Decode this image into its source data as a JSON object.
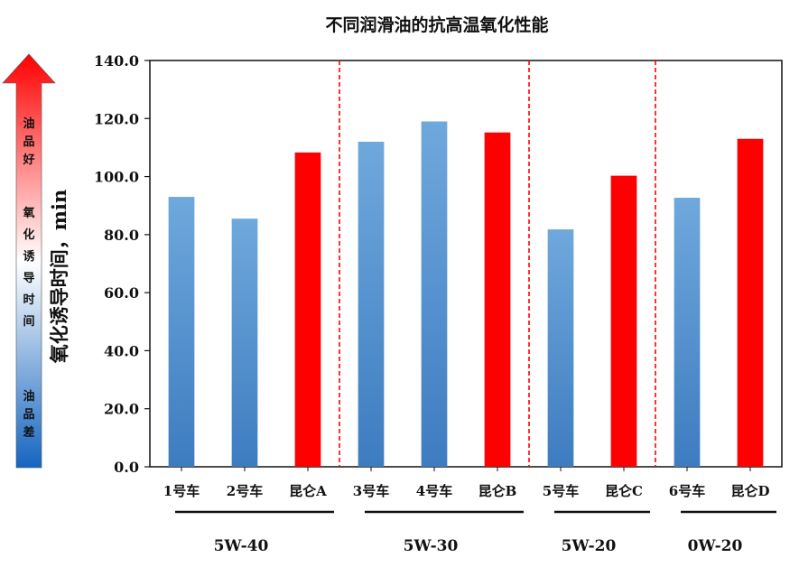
{
  "chart_data": {
    "type": "bar",
    "title": "不同润滑油的抗高温氧化性能",
    "ylabel": "氧化诱导时间，min",
    "ylim": [
      0,
      140
    ],
    "yticks": [
      "0.0",
      "20.0",
      "40.0",
      "60.0",
      "80.0",
      "100.0",
      "120.0",
      "140.0"
    ],
    "grid": false,
    "categories": [
      "1号车",
      "2号车",
      "昆仑A",
      "3号车",
      "4号车",
      "昆仑B",
      "5号车",
      "昆仑C",
      "6号车",
      "昆仑D"
    ],
    "values": [
      93,
      85.5,
      108.3,
      112,
      119,
      115.2,
      81.8,
      100.3,
      92.7,
      113
    ],
    "bar_colors": [
      "#5b9bd5",
      "#5b9bd5",
      "#ff0000",
      "#5b9bd5",
      "#5b9bd5",
      "#ff0000",
      "#5b9bd5",
      "#ff0000",
      "#5b9bd5",
      "#ff0000"
    ],
    "groups": [
      {
        "label": "5W-40",
        "categories": [
          "1号车",
          "2号车",
          "昆仑A"
        ]
      },
      {
        "label": "5W-30",
        "categories": [
          "3号车",
          "4号车",
          "昆仑B"
        ]
      },
      {
        "label": "5W-20",
        "categories": [
          "5号车",
          "昆仑C"
        ]
      },
      {
        "label": "0W-20",
        "categories": [
          "6号车",
          "昆仑D"
        ]
      }
    ],
    "group_separator_color": "#ff0000"
  },
  "side_arrow": {
    "top_label": [
      "油",
      "品",
      "好"
    ],
    "middle_label": [
      "氧",
      "化",
      "诱",
      "导",
      "时",
      "间"
    ],
    "bottom_label": [
      "油",
      "品",
      "差"
    ],
    "colors": {
      "top": "#ff0000",
      "middle": "#ffffff",
      "bottom": "#1565c0"
    }
  }
}
